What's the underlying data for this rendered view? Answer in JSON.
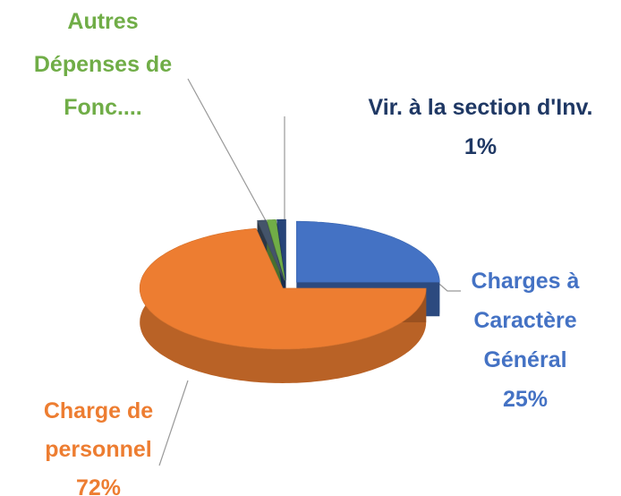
{
  "chart_data": {
    "type": "pie",
    "categories": [
      "Charges à Caractère Général",
      "Charge de personnel",
      null,
      "Autres Dépenses de Fonc....",
      "Vir. à la section d'Inv."
    ],
    "values": [
      25,
      72,
      1,
      1,
      1
    ],
    "value_labels": [
      "25%",
      "72%",
      null,
      null,
      "1%"
    ],
    "colors": [
      "#4472c4",
      "#ed7d31",
      "#44546a",
      "#70ad47",
      "#264478"
    ]
  }
}
